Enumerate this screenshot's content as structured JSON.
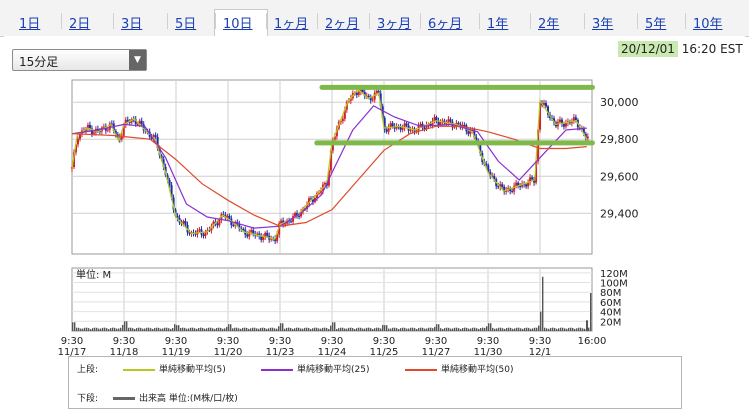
{
  "tabs": [
    {
      "label": "1日",
      "active": false
    },
    {
      "label": "2日",
      "active": false
    },
    {
      "label": "3日",
      "active": false
    },
    {
      "label": "5日",
      "active": false
    },
    {
      "label": "10日",
      "active": true
    },
    {
      "label": "1ヶ月",
      "active": false
    },
    {
      "label": "2ヶ月",
      "active": false
    },
    {
      "label": "3ヶ月",
      "active": false
    },
    {
      "label": "6ヶ月",
      "active": false
    },
    {
      "label": "1年",
      "active": false
    },
    {
      "label": "2年",
      "active": false
    },
    {
      "label": "3年",
      "active": false
    },
    {
      "label": "5年",
      "active": false
    },
    {
      "label": "10年",
      "active": false
    }
  ],
  "interval_select": {
    "value": "15分足"
  },
  "timestamp": {
    "date": "20/12/01",
    "time": "16:20 EST"
  },
  "highlight_color": "#7fb94a",
  "chart_data": [
    {
      "type": "candlestick",
      "title": "",
      "ylim": [
        29180,
        30120
      ],
      "yticks": [
        29400,
        29600,
        29800,
        30000
      ],
      "ytick_labels": [
        "29,400",
        "29,600",
        "29,800",
        "30,000"
      ],
      "x": [
        "11/17",
        "11/18",
        "11/19",
        "11/20",
        "11/23",
        "11/24",
        "11/25",
        "11/27",
        "11/30",
        "12/1"
      ],
      "close_path": [
        [
          0,
          29640
        ],
        [
          0.1,
          29820
        ],
        [
          0.3,
          29860
        ],
        [
          0.5,
          29840
        ],
        [
          0.75,
          29880
        ],
        [
          0.9,
          29790
        ],
        [
          1.0,
          29880
        ],
        [
          1.2,
          29910
        ],
        [
          1.4,
          29850
        ],
        [
          1.6,
          29800
        ],
        [
          1.8,
          29620
        ],
        [
          2.0,
          29380
        ],
        [
          2.3,
          29290
        ],
        [
          2.6,
          29300
        ],
        [
          2.9,
          29390
        ],
        [
          3.1,
          29350
        ],
        [
          3.3,
          29300
        ],
        [
          3.6,
          29280
        ],
        [
          3.9,
          29260
        ],
        [
          4.0,
          29340
        ],
        [
          4.3,
          29380
        ],
        [
          4.6,
          29470
        ],
        [
          4.9,
          29560
        ],
        [
          5.0,
          29780
        ],
        [
          5.3,
          30000
        ],
        [
          5.5,
          30070
        ],
        [
          5.7,
          30020
        ],
        [
          5.9,
          30050
        ],
        [
          6.0,
          29860
        ],
        [
          6.3,
          29870
        ],
        [
          6.6,
          29850
        ],
        [
          7.0,
          29900
        ],
        [
          7.4,
          29880
        ],
        [
          7.7,
          29840
        ],
        [
          8.0,
          29620
        ],
        [
          8.3,
          29520
        ],
        [
          8.7,
          29560
        ],
        [
          8.9,
          29580
        ],
        [
          9.0,
          30010
        ],
        [
          9.3,
          29880
        ],
        [
          9.5,
          29890
        ],
        [
          9.7,
          29900
        ],
        [
          9.9,
          29800
        ]
      ],
      "series": [
        {
          "name": "単純移動平均(5)",
          "color": "#b7c91e"
        },
        {
          "name": "単純移動平均(25)",
          "color": "#8a2fd0"
        },
        {
          "name": "単純移動平均(50)",
          "color": "#e04a2a"
        }
      ],
      "ma25": [
        [
          0,
          29830
        ],
        [
          0.5,
          29850
        ],
        [
          1.0,
          29880
        ],
        [
          1.4,
          29870
        ],
        [
          1.8,
          29700
        ],
        [
          2.2,
          29450
        ],
        [
          2.6,
          29380
        ],
        [
          3.0,
          29360
        ],
        [
          3.5,
          29320
        ],
        [
          4.0,
          29330
        ],
        [
          4.4,
          29400
        ],
        [
          4.8,
          29500
        ],
        [
          5.0,
          29620
        ],
        [
          5.4,
          29850
        ],
        [
          5.8,
          29980
        ],
        [
          6.2,
          29920
        ],
        [
          6.7,
          29870
        ],
        [
          7.3,
          29880
        ],
        [
          7.8,
          29840
        ],
        [
          8.2,
          29680
        ],
        [
          8.6,
          29580
        ],
        [
          9.0,
          29700
        ],
        [
          9.5,
          29850
        ],
        [
          9.9,
          29860
        ]
      ],
      "ma50": [
        [
          0,
          29830
        ],
        [
          0.8,
          29820
        ],
        [
          1.5,
          29800
        ],
        [
          2.0,
          29690
        ],
        [
          2.5,
          29560
        ],
        [
          3.0,
          29470
        ],
        [
          3.5,
          29390
        ],
        [
          4.0,
          29330
        ],
        [
          4.5,
          29350
        ],
        [
          5.0,
          29420
        ],
        [
          5.5,
          29580
        ],
        [
          6.0,
          29740
        ],
        [
          6.5,
          29830
        ],
        [
          7.0,
          29870
        ],
        [
          7.5,
          29870
        ],
        [
          8.0,
          29840
        ],
        [
          8.5,
          29800
        ],
        [
          9.0,
          29750
        ],
        [
          9.5,
          29750
        ],
        [
          9.9,
          29760
        ]
      ],
      "annotations": [
        {
          "y": 30080,
          "x_from": 5.0,
          "x_to": 10.2
        },
        {
          "y": 29780,
          "x_from": 4.9,
          "x_to": 10.2
        }
      ]
    },
    {
      "type": "bar",
      "title": "",
      "unit_label": "単位: M",
      "ylim": [
        0,
        130
      ],
      "yticks": [
        20,
        40,
        60,
        80,
        100,
        120
      ],
      "ytick_labels": [
        "20M",
        "40M",
        "60M",
        "80M",
        "100M",
        "120M"
      ],
      "day_peaks": [
        18,
        20,
        12,
        14,
        16,
        18,
        12,
        14,
        16,
        112,
        22
      ],
      "xtick_labels": [
        {
          "time": "9:30",
          "date": "11/17"
        },
        {
          "time": "9:30",
          "date": "11/18"
        },
        {
          "time": "9:30",
          "date": "11/19"
        },
        {
          "time": "9:30",
          "date": "11/20"
        },
        {
          "time": "9:30",
          "date": "11/23"
        },
        {
          "time": "9:30",
          "date": "11/24"
        },
        {
          "time": "9:30",
          "date": "11/25"
        },
        {
          "time": "9:30",
          "date": "11/27"
        },
        {
          "time": "9:30",
          "date": "11/30"
        },
        {
          "time": "9:30",
          "date": "12/1"
        },
        {
          "time": "16:00",
          "date": ""
        }
      ]
    }
  ],
  "legend": {
    "upper_label": "上段:",
    "lower_label": "下段:",
    "items": [
      {
        "label": "単純移動平均(5)",
        "color": "#b7c91e"
      },
      {
        "label": "単純移動平均(25)",
        "color": "#8a2fd0"
      },
      {
        "label": "単純移動平均(50)",
        "color": "#e04a2a"
      }
    ],
    "volume": {
      "label": "出来高 単位:(M株/口/枚)",
      "color": "#666666"
    }
  }
}
